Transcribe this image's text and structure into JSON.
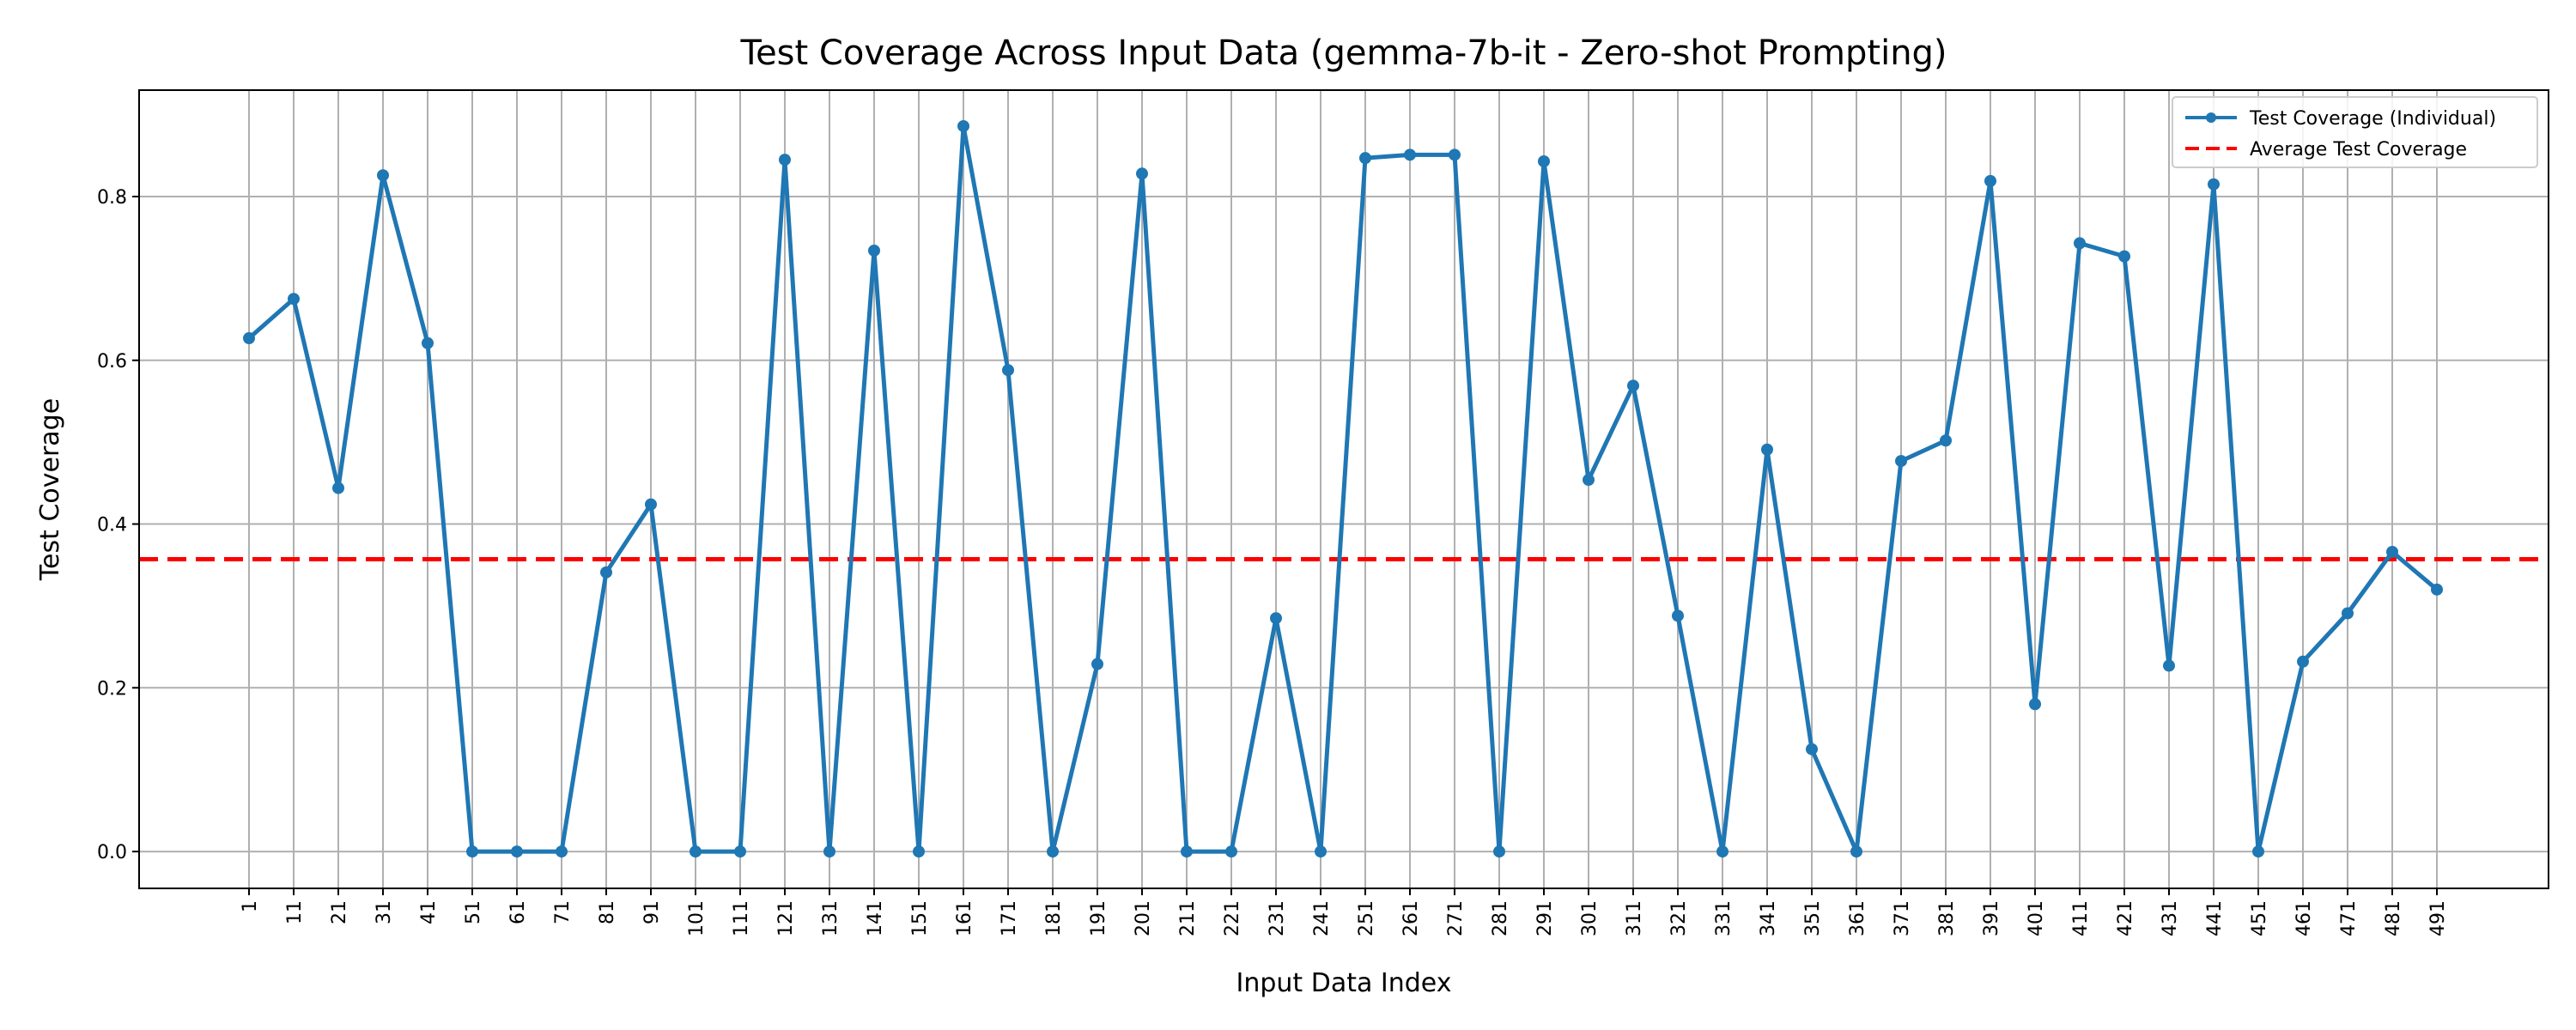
{
  "chart_data": {
    "type": "line",
    "title": "Test Coverage Across Input Data (gemma-7b-it - Zero-shot Prompting)",
    "xlabel": "Input Data Index",
    "ylabel": "Test Coverage",
    "x": [
      1,
      11,
      21,
      31,
      41,
      51,
      61,
      71,
      81,
      91,
      101,
      111,
      121,
      131,
      141,
      151,
      161,
      171,
      181,
      191,
      201,
      211,
      221,
      231,
      241,
      251,
      261,
      271,
      281,
      291,
      301,
      311,
      321,
      331,
      341,
      351,
      361,
      371,
      381,
      391,
      401,
      411,
      421,
      431,
      441,
      451,
      461,
      471,
      481,
      491
    ],
    "ylim": [
      -0.045,
      0.93
    ],
    "yticks": [
      "0.0",
      "0.2",
      "0.4",
      "0.6",
      "0.8"
    ],
    "ytick_values": [
      0,
      0.2,
      0.4,
      0.6,
      0.8
    ],
    "grid": true,
    "legend_position": "top-right",
    "series": [
      {
        "name": "Test Coverage (Individual)",
        "color": "#1f77b4",
        "values": [
          0.627,
          0.675,
          0.444,
          0.826,
          0.621,
          0.0,
          0.0,
          0.0,
          0.341,
          0.424,
          0.0,
          0.0,
          0.845,
          0.0,
          0.734,
          0.0,
          0.886,
          0.588,
          0.0,
          0.229,
          0.828,
          0.0,
          0.0,
          0.285,
          0.0,
          0.847,
          0.851,
          0.851,
          0.0,
          0.843,
          0.454,
          0.569,
          0.288,
          0.0,
          0.491,
          0.125,
          0.0,
          0.477,
          0.502,
          0.819,
          0.18,
          0.743,
          0.727,
          0.227,
          0.815,
          0.0,
          0.232,
          0.291,
          0.366,
          0.32
        ]
      },
      {
        "name": "Average Test Coverage",
        "color": "#ff0000",
        "style": "dashed",
        "value": 0.357
      }
    ]
  }
}
